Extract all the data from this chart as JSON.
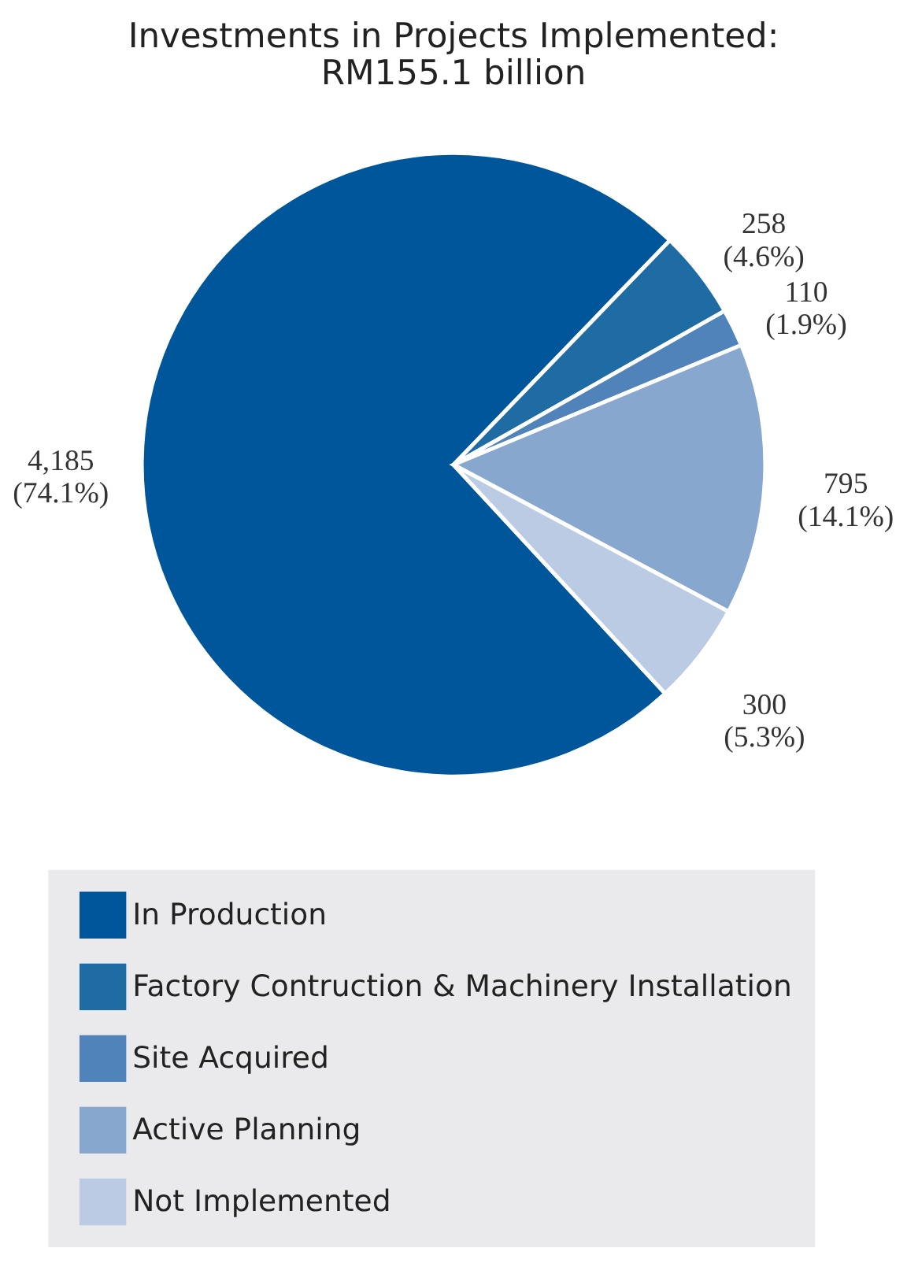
{
  "chart_data": {
    "type": "pie",
    "title": "Investments in Projects Implemented:\nRM155.1 billion",
    "categories": [
      "In Production",
      "Factory Contruction & Machinery Installation",
      "Site Acquired",
      "Active Planning",
      "Not Implemented"
    ],
    "values": [
      4185,
      258,
      110,
      795,
      300
    ],
    "colors": [
      "#00569a",
      "#1f6ca5",
      "#4f83b9",
      "#88a7cf",
      "#bccbe4"
    ],
    "value_labels": [
      "4,185\n(74.1%)",
      "258\n(4.6%)",
      "110\n(1.9%)",
      "795\n(14.1%)",
      "300\n(5.3%)"
    ],
    "legend": "bottom left"
  }
}
